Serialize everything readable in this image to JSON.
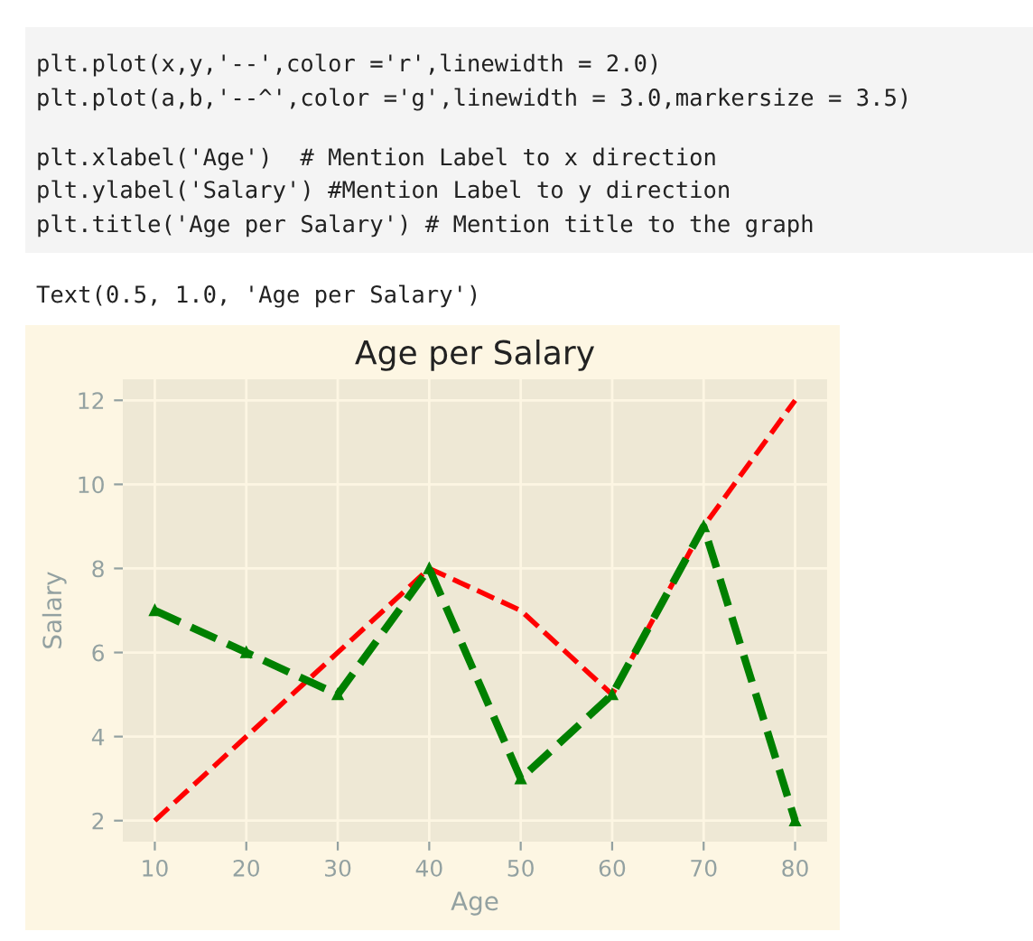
{
  "chart_data": {
    "type": "line",
    "title": "Age per Salary",
    "xlabel": "Age",
    "ylabel": "Salary",
    "annotations": [
      "plt.plot(x,y,'--',color ='r',linewidth = 2.0)",
      "plt.plot(a,b,'--^',color ='g',linewidth = 3.0,markersize = 3.5)",
      "plt.xlabel('Age')  # Mention Label to x direction",
      "plt.ylabel('Salary') #Mention Label to y direction",
      "plt.title('Age per Salary') # Mention title to the graph",
      "Text(0.5, 1.0, 'Age per Salary')"
    ],
    "x": [
      10,
      20,
      30,
      40,
      50,
      60,
      70,
      80
    ],
    "series": [
      {
        "color": "#ff0000",
        "values": [
          2,
          4,
          6,
          8,
          7,
          5,
          9,
          12
        ],
        "line_style": "dashed",
        "marker": "none"
      },
      {
        "color": "#008000",
        "values": [
          7,
          6,
          5,
          8,
          3,
          5,
          9,
          2
        ],
        "line_style": "dashed",
        "marker": "triangle"
      }
    ],
    "xlim": [
      6.5,
      83.5
    ],
    "ylim": [
      1.5,
      12.5
    ],
    "xticks": [
      10,
      20,
      30,
      40,
      50,
      60,
      70,
      80
    ],
    "yticks": [
      2,
      4,
      6,
      8,
      10,
      12
    ],
    "grid": true
  }
}
